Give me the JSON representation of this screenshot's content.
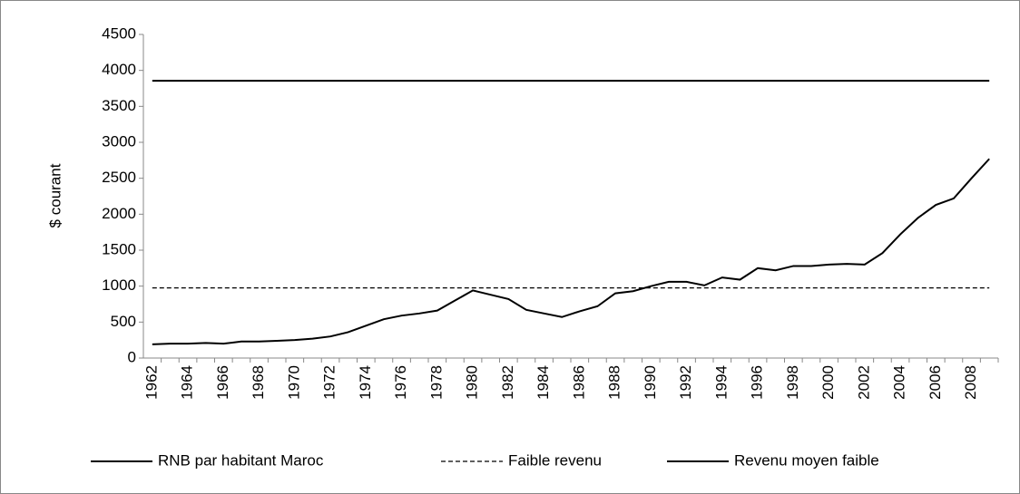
{
  "chart_data": {
    "type": "line",
    "y_label": "$ courant",
    "categories": [
      "1962",
      null,
      "1964",
      null,
      "1966",
      null,
      "1968",
      null,
      "1970",
      null,
      "1972",
      null,
      "1974",
      null,
      "1976",
      null,
      "1978",
      null,
      "1980",
      null,
      "1982",
      null,
      "1984",
      null,
      "1986",
      null,
      "1988",
      null,
      "1990",
      null,
      "1992",
      null,
      "1994",
      null,
      "1996",
      null,
      "1998",
      null,
      "2000",
      null,
      "2002",
      null,
      "2004",
      null,
      "2006",
      null,
      "2008",
      null
    ],
    "series": [
      {
        "name": "RNB par habitant Maroc",
        "color": "#000000",
        "dash": "solid",
        "values": [
          190,
          200,
          200,
          210,
          200,
          230,
          230,
          240,
          250,
          270,
          300,
          360,
          450,
          540,
          590,
          620,
          660,
          800,
          940,
          880,
          820,
          670,
          620,
          570,
          650,
          720,
          900,
          930,
          1000,
          1060,
          1060,
          1010,
          1120,
          1090,
          1250,
          1220,
          1280,
          1280,
          1300,
          1310,
          1300,
          1460,
          1720,
          1950,
          2130,
          2220,
          2500,
          2770
        ]
      },
      {
        "name": "Faible revenu",
        "color": "#000000",
        "dash": "dashed",
        "values": [
          975,
          975,
          975,
          975,
          975,
          975,
          975,
          975,
          975,
          975,
          975,
          975,
          975,
          975,
          975,
          975,
          975,
          975,
          975,
          975,
          975,
          975,
          975,
          975,
          975,
          975,
          975,
          975,
          975,
          975,
          975,
          975,
          975,
          975,
          975,
          975,
          975,
          975,
          975,
          975,
          975,
          975,
          975,
          975,
          975,
          975,
          975,
          975
        ]
      },
      {
        "name": "Revenu moyen faible",
        "color": "#000000",
        "dash": "solid",
        "values": [
          3855,
          3855,
          3855,
          3855,
          3855,
          3855,
          3855,
          3855,
          3855,
          3855,
          3855,
          3855,
          3855,
          3855,
          3855,
          3855,
          3855,
          3855,
          3855,
          3855,
          3855,
          3855,
          3855,
          3855,
          3855,
          3855,
          3855,
          3855,
          3855,
          3855,
          3855,
          3855,
          3855,
          3855,
          3855,
          3855,
          3855,
          3855,
          3855,
          3855,
          3855,
          3855,
          3855,
          3855,
          3855,
          3855,
          3855,
          3855
        ]
      }
    ],
    "ylim": [
      0,
      4500
    ],
    "yticks": [
      0,
      500,
      1000,
      1500,
      2000,
      2500,
      3000,
      3500,
      4000,
      4500
    ],
    "grid": false,
    "legend": "bottom"
  }
}
